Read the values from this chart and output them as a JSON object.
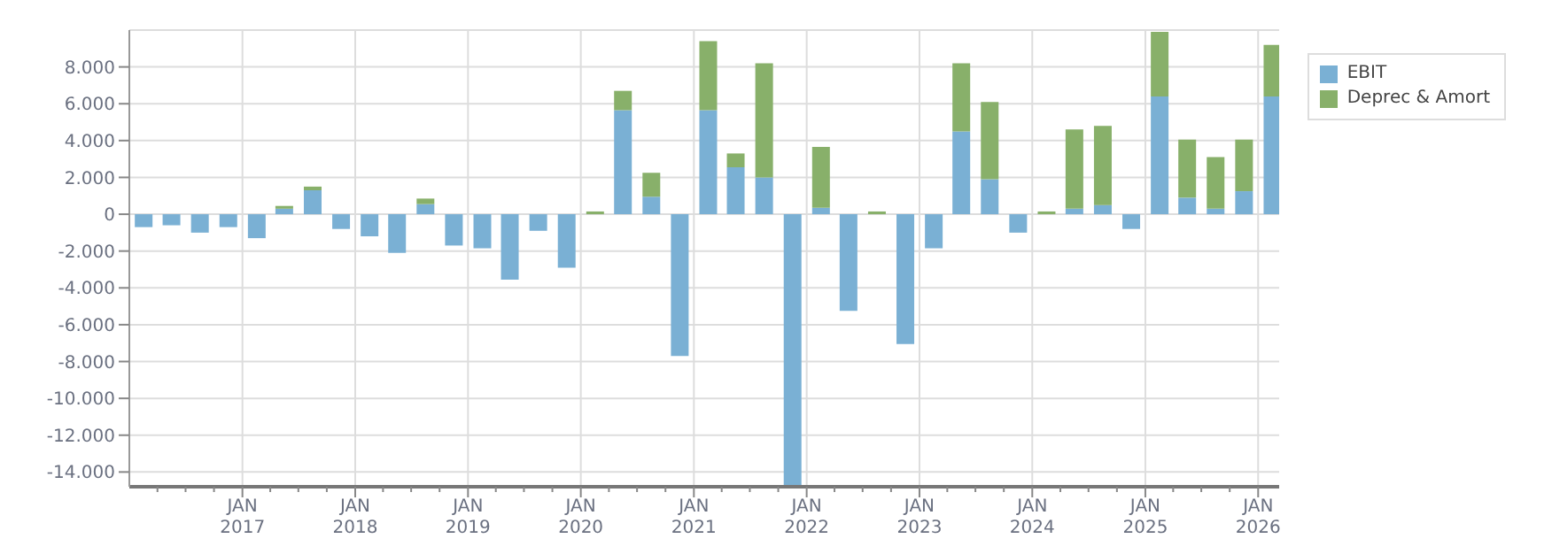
{
  "chart_data": {
    "type": "bar",
    "stacked": true,
    "x": [
      "2016-02-15",
      "2016-05-15",
      "2016-08-15",
      "2016-11-15",
      "2017-02-15",
      "2017-05-15",
      "2017-08-15",
      "2017-11-15",
      "2018-02-15",
      "2018-05-15",
      "2018-08-15",
      "2018-11-15",
      "2019-02-15",
      "2019-05-15",
      "2019-08-15",
      "2019-11-15",
      "2020-02-15",
      "2020-05-15",
      "2020-08-15",
      "2020-11-15",
      "2021-02-15",
      "2021-05-15",
      "2021-08-15",
      "2021-11-15",
      "2022-02-15",
      "2022-05-15",
      "2022-08-15",
      "2022-11-15",
      "2023-02-15",
      "2023-05-15",
      "2023-08-15",
      "2023-11-15",
      "2024-02-15",
      "2024-05-15",
      "2024-08-15",
      "2024-11-15",
      "2025-02-15",
      "2025-05-15",
      "2025-08-15",
      "2025-11-15",
      "2026-02-15"
    ],
    "series": [
      {
        "name": "EBIT",
        "color": "#7ab0d4",
        "values": [
          -700,
          -600,
          -1000,
          -700,
          -1300,
          300,
          1300,
          -800,
          -1200,
          -2100,
          550,
          -1700,
          -1850,
          -3550,
          -900,
          -2900,
          0,
          5650,
          950,
          -7700,
          5650,
          2550,
          2000,
          -14700,
          350,
          -5250,
          0,
          -7050,
          -1850,
          4500,
          1900,
          -1000,
          0,
          300,
          500,
          -800,
          6400,
          900,
          300,
          1250,
          6400
        ]
      },
      {
        "name": "Deprec & Amort",
        "color": "#88b06a",
        "values": [
          0,
          0,
          0,
          0,
          0,
          150,
          200,
          0,
          0,
          0,
          300,
          0,
          0,
          0,
          0,
          0,
          150,
          1050,
          1300,
          0,
          3750,
          750,
          6200,
          0,
          3300,
          0,
          150,
          0,
          0,
          3700,
          4200,
          0,
          150,
          4300,
          4300,
          0,
          3500,
          3150,
          2800,
          2800,
          2800
        ]
      }
    ],
    "xlim": [
      "2016-01",
      "2026-03-10"
    ],
    "xticks": [
      {
        "value": "2016-04",
        "label": null
      },
      {
        "value": "2016-07",
        "label": null
      },
      {
        "value": "2016-10",
        "label": null
      },
      {
        "value": "2017-01",
        "label": "JAN\n2017"
      },
      {
        "value": "2017-04",
        "label": null
      },
      {
        "value": "2017-07",
        "label": null
      },
      {
        "value": "2017-10",
        "label": null
      },
      {
        "value": "2018-01",
        "label": "JAN\n2018"
      },
      {
        "value": "2018-04",
        "label": null
      },
      {
        "value": "2018-07",
        "label": null
      },
      {
        "value": "2018-10",
        "label": null
      },
      {
        "value": "2019-01",
        "label": "JAN\n2019"
      },
      {
        "value": "2019-04",
        "label": null
      },
      {
        "value": "2019-07",
        "label": null
      },
      {
        "value": "2019-10",
        "label": null
      },
      {
        "value": "2020-01",
        "label": "JAN\n2020"
      },
      {
        "value": "2020-04",
        "label": null
      },
      {
        "value": "2020-07",
        "label": null
      },
      {
        "value": "2020-10",
        "label": null
      },
      {
        "value": "2021-01",
        "label": "JAN\n2021"
      },
      {
        "value": "2021-04",
        "label": null
      },
      {
        "value": "2021-07",
        "label": null
      },
      {
        "value": "2021-10",
        "label": null
      },
      {
        "value": "2022-01",
        "label": "JAN\n2022"
      },
      {
        "value": "2022-04",
        "label": null
      },
      {
        "value": "2022-07",
        "label": null
      },
      {
        "value": "2022-10",
        "label": null
      },
      {
        "value": "2023-01",
        "label": "JAN\n2023"
      },
      {
        "value": "2023-04",
        "label": null
      },
      {
        "value": "2023-07",
        "label": null
      },
      {
        "value": "2023-10",
        "label": null
      },
      {
        "value": "2024-01",
        "label": "JAN\n2024"
      },
      {
        "value": "2024-04",
        "label": null
      },
      {
        "value": "2024-07",
        "label": null
      },
      {
        "value": "2024-10",
        "label": null
      },
      {
        "value": "2025-01",
        "label": "JAN\n2025"
      },
      {
        "value": "2025-04",
        "label": null
      },
      {
        "value": "2025-07",
        "label": null
      },
      {
        "value": "2025-10",
        "label": null
      },
      {
        "value": "2026-01",
        "label": "JAN\n2026"
      }
    ],
    "ylim": [
      -14800,
      10000
    ],
    "yticks": [
      {
        "value": -14000,
        "label": "-14.000"
      },
      {
        "value": -12000,
        "label": "-12.000"
      },
      {
        "value": -10000,
        "label": "-10.000"
      },
      {
        "value": -8000,
        "label": "-8.000"
      },
      {
        "value": -6000,
        "label": "-6.000"
      },
      {
        "value": -4000,
        "label": "-4.000"
      },
      {
        "value": -2000,
        "label": "-2.000"
      },
      {
        "value": 0,
        "label": "0"
      },
      {
        "value": 2000,
        "label": "2.000"
      },
      {
        "value": 4000,
        "label": "4.000"
      },
      {
        "value": 6000,
        "label": "6.000"
      },
      {
        "value": 8000,
        "label": "8.000"
      }
    ],
    "grid": true,
    "legend": "top right"
  }
}
